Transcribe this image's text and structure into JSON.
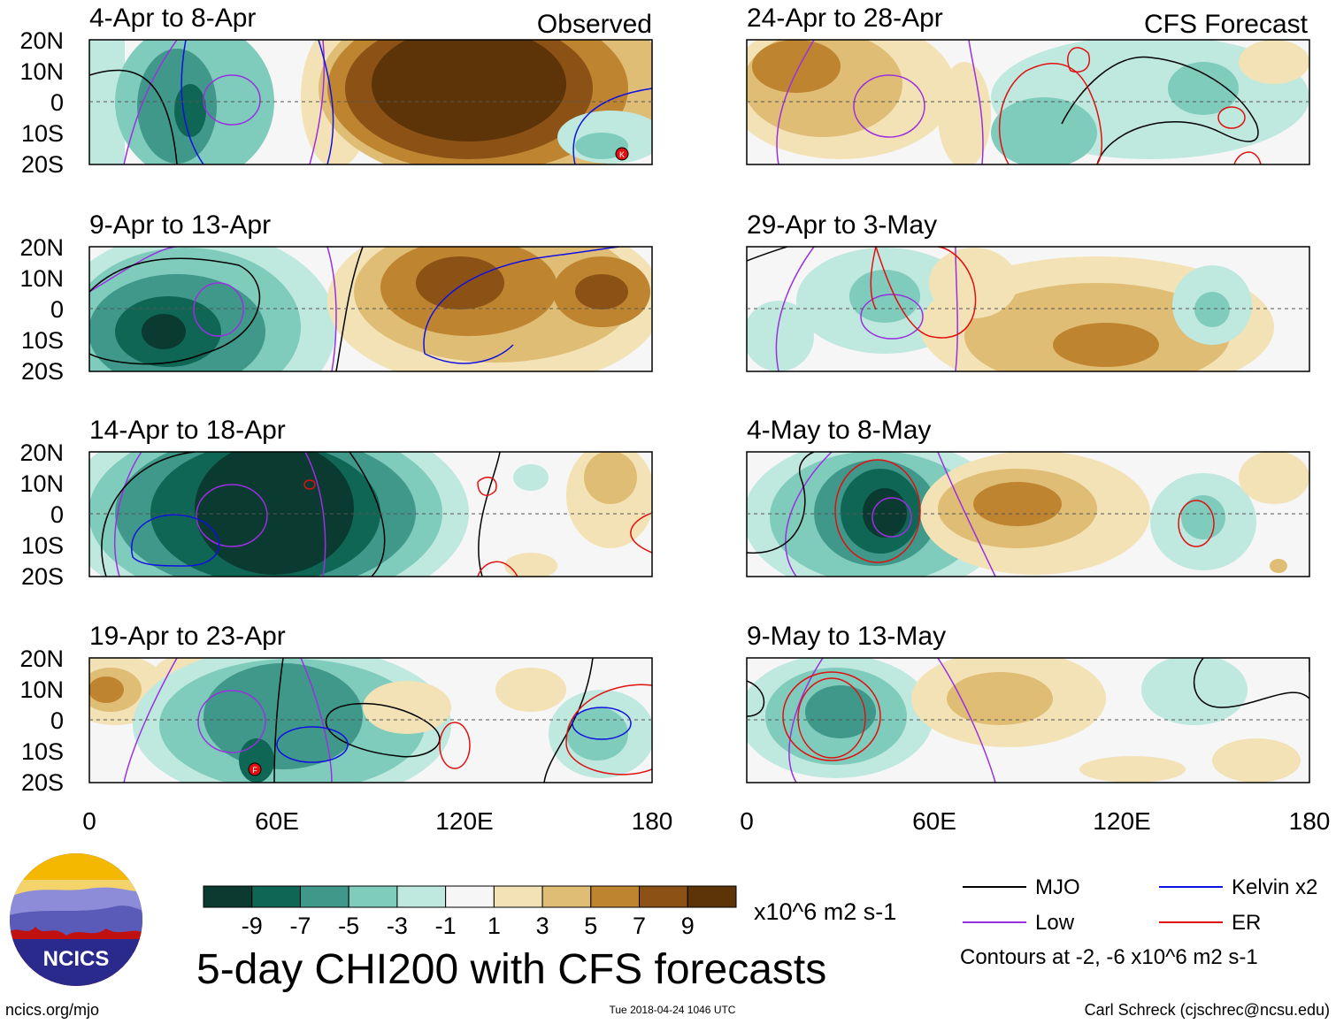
{
  "observed_label": "Observed",
  "forecast_label": "CFS Forecast",
  "panels_left": [
    {
      "title": "4-Apr to 8-Apr"
    },
    {
      "title": "9-Apr to 13-Apr"
    },
    {
      "title": "14-Apr to 18-Apr"
    },
    {
      "title": "19-Apr to 23-Apr"
    }
  ],
  "panels_right": [
    {
      "title": "24-Apr to 28-Apr"
    },
    {
      "title": "29-Apr to 3-May"
    },
    {
      "title": "4-May to 8-May"
    },
    {
      "title": "9-May to 13-May"
    }
  ],
  "lat_labels": [
    "20N",
    "10N",
    "0",
    "10S",
    "20S"
  ],
  "lon_labels": [
    "0",
    "60E",
    "120E",
    "180"
  ],
  "colorbar": {
    "ticks": [
      "-9",
      "-7",
      "-5",
      "-3",
      "-1",
      "1",
      "3",
      "5",
      "7",
      "9"
    ],
    "units": "x10^6 m2 s-1",
    "colors": [
      "#0b3a30",
      "#0f6655",
      "#3f988a",
      "#7fcbbc",
      "#bfe8df",
      "#f6f6f6",
      "#f3e2b6",
      "#dfbd75",
      "#bf8430",
      "#8c5215",
      "#5c3408"
    ]
  },
  "legend": {
    "mjo": "MJO",
    "kelvin": "Kelvin x2",
    "low": "Low",
    "er": "ER",
    "note": "Contours at -2, -6 x10^6 m2 s-1",
    "colors": {
      "mjo": "#000000",
      "kelvin": "#1010e0",
      "low": "#9a30e0",
      "er": "#e01010"
    }
  },
  "main_title": "5-day CHI200 with CFS forecasts",
  "logo_text": "NCICS",
  "site": "ncics.org/mjo",
  "timestamp": "Tue 2018-04-24 1046 UTC",
  "author": "Carl Schreck (cjschrec@ncsu.edu)",
  "storm_markers": [
    "K",
    "F"
  ]
}
